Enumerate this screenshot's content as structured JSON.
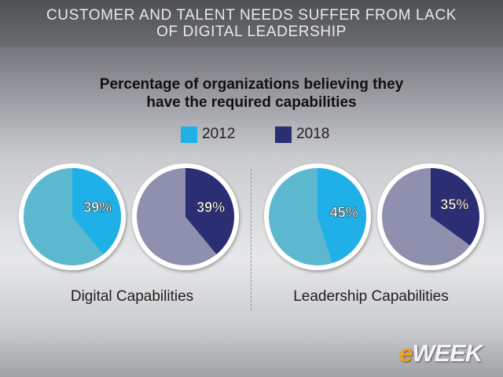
{
  "header": {
    "title": "CUSTOMER AND TALENT NEEDS SUFFER FROM LACK\nOF DIGITAL LEADERSHIP"
  },
  "chart_data": {
    "type": "pie",
    "title": "Percentage of organizations believing they\nhave the required capabilities",
    "legend": {
      "placement": "top-center",
      "entries": [
        {
          "name": "2012",
          "color": "#1fb0e8"
        },
        {
          "name": "2018",
          "color": "#2b2e73"
        }
      ]
    },
    "groups": [
      {
        "label": "Digital Capabilities",
        "pies": [
          {
            "year": "2012",
            "value": 39,
            "label": "39%",
            "color": "#1fb0e8",
            "rest_color": "#5cb8cf"
          },
          {
            "year": "2018",
            "value": 39,
            "label": "39%",
            "color": "#2b2e73",
            "rest_color": "#8f90ad"
          }
        ]
      },
      {
        "label": "Leadership Capabilities",
        "pies": [
          {
            "year": "2012",
            "value": 45,
            "label": "45%",
            "color": "#1fb0e8",
            "rest_color": "#5cb8cf"
          },
          {
            "year": "2018",
            "value": 35,
            "label": "35%",
            "color": "#2b2e73",
            "rest_color": "#8f90ad"
          }
        ]
      }
    ]
  },
  "logo": {
    "e": "e",
    "rest": "WEEK"
  }
}
